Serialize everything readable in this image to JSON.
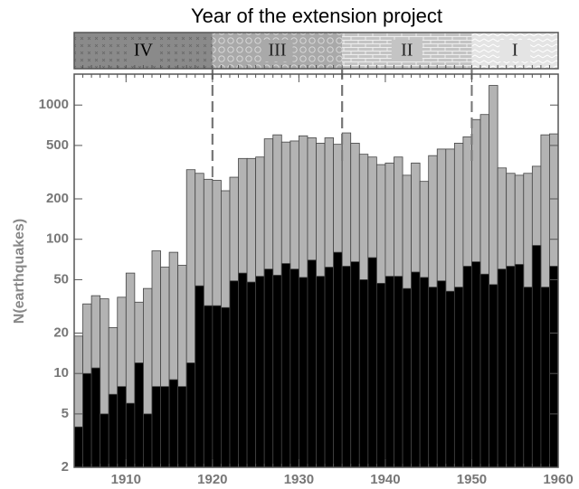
{
  "chart_data": {
    "type": "histogram",
    "top_panel": {
      "title": "Year of the extension project",
      "segments": [
        {
          "label": "IV",
          "start": 1904,
          "end": 1920,
          "color": "#8a8a8a"
        },
        {
          "label": "III",
          "start": 1920,
          "end": 1935,
          "color": "#a9a9a9"
        },
        {
          "label": "II",
          "start": 1935,
          "end": 1950,
          "color": "#c4c4c4"
        },
        {
          "label": "I",
          "start": 1950,
          "end": 1960,
          "color": "#e4e4e4"
        }
      ]
    },
    "y_label": "N(earthquakes)",
    "log_y": true,
    "bins": [
      1904,
      1905,
      1906,
      1907,
      1908,
      1909,
      1910,
      1911,
      1912,
      1913,
      1914,
      1915,
      1916,
      1917,
      1918,
      1919,
      1920,
      1921,
      1922,
      1923,
      1924,
      1925,
      1926,
      1927,
      1928,
      1929,
      1930,
      1931,
      1932,
      1933,
      1934,
      1935,
      1936,
      1937,
      1938,
      1939,
      1940,
      1941,
      1942,
      1943,
      1944,
      1945,
      1946,
      1947,
      1948,
      1949,
      1950,
      1951,
      1952,
      1953,
      1954,
      1955,
      1956,
      1957,
      1958,
      1959,
      1960
    ],
    "series": [
      {
        "color": "#b3b3b3",
        "values": [
          19,
          33,
          38,
          36,
          22,
          37,
          56,
          34,
          43,
          82,
          62,
          80,
          64,
          330,
          310,
          280,
          275,
          230,
          290,
          400,
          400,
          410,
          560,
          600,
          530,
          540,
          590,
          570,
          520,
          570,
          510,
          620,
          520,
          430,
          410,
          360,
          370,
          410,
          300,
          370,
          270,
          420,
          470,
          470,
          520,
          580,
          780,
          850,
          1400,
          340,
          310,
          300,
          310,
          350,
          600,
          610
        ]
      },
      {
        "color": "#000000",
        "values": [
          4,
          10,
          11,
          5,
          7,
          8,
          6,
          12,
          5,
          8,
          8,
          9,
          8,
          12,
          45,
          32,
          32,
          31,
          49,
          56,
          48,
          53,
          60,
          54,
          66,
          60,
          52,
          70,
          53,
          62,
          80,
          63,
          68,
          50,
          73,
          47,
          53,
          53,
          43,
          57,
          52,
          44,
          49,
          41,
          44,
          63,
          68,
          55,
          46,
          60,
          63,
          65,
          44,
          90,
          44,
          63
        ]
      }
    ],
    "xlim": [
      1904,
      1960
    ],
    "xticks": [
      1910,
      1920,
      1930,
      1940,
      1950,
      1960
    ],
    "ylim": [
      2,
      1700
    ],
    "yticks": [
      2,
      5,
      10,
      20,
      50,
      100,
      200,
      500,
      1000
    ]
  }
}
